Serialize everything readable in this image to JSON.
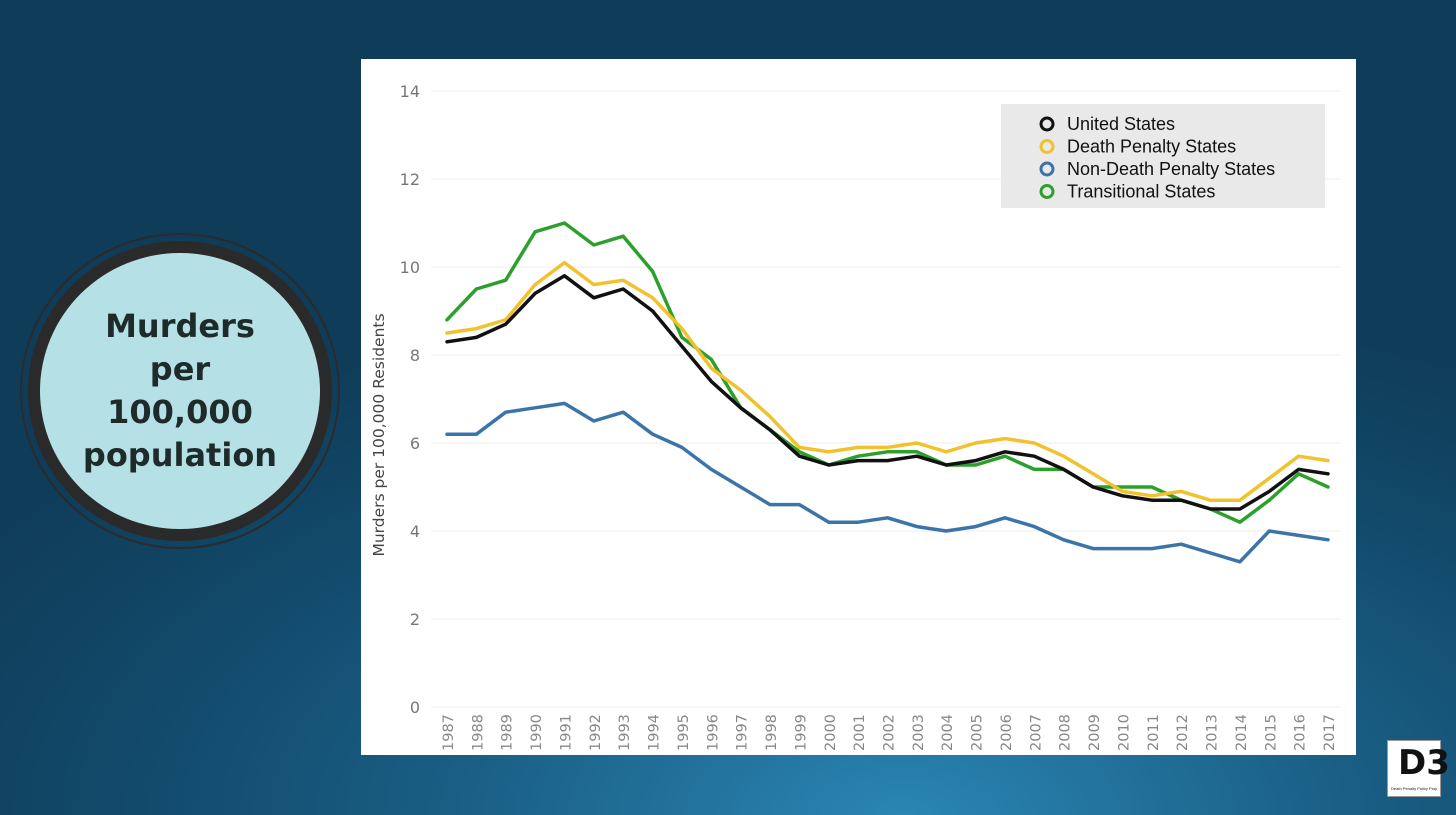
{
  "badge": {
    "line1": "Murders",
    "line2": "per",
    "line3": "100,000",
    "line4": "population"
  },
  "logo": {
    "mark": "D3",
    "subtitle": "Death Penalty Policy Project"
  },
  "chart_data": {
    "type": "line",
    "title": "",
    "xlabel": "",
    "ylabel": "Murders per 100,000 Residents",
    "ylim": [
      0,
      14
    ],
    "yticks": [
      0,
      2,
      4,
      6,
      8,
      10,
      12,
      14
    ],
    "grid": true,
    "legend_position": "top-right",
    "x": [
      1987,
      1988,
      1989,
      1990,
      1991,
      1992,
      1993,
      1994,
      1995,
      1996,
      1997,
      1998,
      1999,
      2000,
      2001,
      2002,
      2003,
      2004,
      2005,
      2006,
      2007,
      2008,
      2009,
      2010,
      2011,
      2012,
      2013,
      2014,
      2015,
      2016,
      2017
    ],
    "series": [
      {
        "name": "Non-Death Penalty States",
        "color": "#3a74a8",
        "values": [
          6.2,
          6.2,
          6.7,
          6.8,
          6.9,
          6.5,
          6.7,
          6.2,
          5.9,
          5.4,
          5.0,
          4.6,
          4.6,
          4.2,
          4.2,
          4.3,
          4.1,
          4.0,
          4.1,
          4.3,
          4.1,
          3.8,
          3.6,
          3.6,
          3.6,
          3.7,
          3.5,
          3.3,
          4.0,
          3.9,
          3.8
        ]
      },
      {
        "name": "Transitional States",
        "color": "#2ca02c",
        "values": [
          8.8,
          9.5,
          9.7,
          10.8,
          11.0,
          10.5,
          10.7,
          9.9,
          8.4,
          7.9,
          6.8,
          6.3,
          5.8,
          5.5,
          5.7,
          5.8,
          5.8,
          5.5,
          5.5,
          5.7,
          5.4,
          5.4,
          5.0,
          5.0,
          5.0,
          4.7,
          4.5,
          4.2,
          4.7,
          5.3,
          5.0
        ]
      },
      {
        "name": "Death Penalty States",
        "color": "#f2c12e",
        "values": [
          8.5,
          8.6,
          8.8,
          9.6,
          10.1,
          9.6,
          9.7,
          9.3,
          8.6,
          7.7,
          7.2,
          6.6,
          5.9,
          5.8,
          5.9,
          5.9,
          6.0,
          5.8,
          6.0,
          6.1,
          6.0,
          5.7,
          5.3,
          4.9,
          4.8,
          4.9,
          4.7,
          4.7,
          5.2,
          5.7,
          5.6
        ]
      },
      {
        "name": "United States",
        "color": "#111111",
        "values": [
          8.3,
          8.4,
          8.7,
          9.4,
          9.8,
          9.3,
          9.5,
          9.0,
          8.2,
          7.4,
          6.8,
          6.3,
          5.7,
          5.5,
          5.6,
          5.6,
          5.7,
          5.5,
          5.6,
          5.8,
          5.7,
          5.4,
          5.0,
          4.8,
          4.7,
          4.7,
          4.5,
          4.5,
          4.9,
          5.4,
          5.3
        ]
      }
    ],
    "legend": [
      {
        "name": "United States",
        "color": "#111111"
      },
      {
        "name": "Death Penalty States",
        "color": "#f2c12e"
      },
      {
        "name": "Non-Death Penalty States",
        "color": "#3a74a8"
      },
      {
        "name": "Transitional States",
        "color": "#2ca02c"
      }
    ]
  }
}
